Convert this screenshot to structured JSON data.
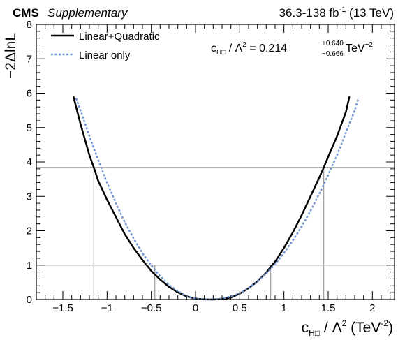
{
  "header": {
    "experiment": "CMS",
    "label": "Supplementary",
    "lumi": "36.3-138 fb",
    "lumi_sup": "-1",
    "lumi_tail": " (13 TeV)"
  },
  "result": {
    "lhs": "c",
    "lhs_sub": "H□",
    "mid": " / Λ",
    "mid_sup": "2",
    "value": " = 0.214",
    "err_up": "+0.640",
    "err_down": "−0.666",
    "unit": " TeV",
    "unit_sup": "−2"
  },
  "chart_data": {
    "type": "line",
    "xlabel": {
      "main": "c",
      "sub": "H□",
      "mid": " / Λ",
      "sup": "2",
      "unit": " (TeV",
      "unit_sup": "-2",
      "close": ")"
    },
    "ylabel": "−2ΔlnL",
    "xlim": [
      -1.8,
      2.25
    ],
    "ylim": [
      0,
      8
    ],
    "x_ticks": [
      -1.5,
      -1,
      -0.5,
      0,
      0.5,
      1,
      1.5,
      2
    ],
    "x_tick_labels": [
      "−1.5",
      "−1",
      "−0.5",
      "0",
      "0.5",
      "1",
      "1.5",
      "2"
    ],
    "y_ticks": [
      0,
      1,
      2,
      3,
      4,
      5,
      6,
      7,
      8
    ],
    "y_tick_labels": [
      "0",
      "1",
      "2",
      "3",
      "4",
      "5",
      "6",
      "7",
      "8"
    ],
    "threshold_lines": [
      1,
      3.84
    ],
    "interval_markers_x": [
      -1.15,
      -0.46,
      0.85,
      1.45
    ],
    "legend_placement": "top-left",
    "series": [
      {
        "name": "Linear+Quadratic",
        "color": "#000000",
        "style": "solid",
        "x": [
          -1.38,
          -1.3,
          -1.2,
          -1.15,
          -1.1,
          -1.0,
          -0.9,
          -0.8,
          -0.7,
          -0.6,
          -0.5,
          -0.4,
          -0.3,
          -0.2,
          -0.1,
          0.0,
          0.1,
          0.2,
          0.3,
          0.4,
          0.5,
          0.6,
          0.7,
          0.8,
          0.85,
          0.9,
          1.0,
          1.1,
          1.2,
          1.3,
          1.4,
          1.45,
          1.5,
          1.6,
          1.7,
          1.74
        ],
        "y": [
          5.9,
          5.1,
          4.2,
          3.84,
          3.45,
          2.9,
          2.4,
          1.9,
          1.5,
          1.15,
          0.83,
          0.58,
          0.37,
          0.21,
          0.09,
          0.025,
          0.005,
          0.0,
          0.01,
          0.06,
          0.17,
          0.33,
          0.53,
          0.78,
          0.95,
          1.1,
          1.5,
          1.95,
          2.45,
          3.0,
          3.55,
          3.84,
          4.15,
          4.75,
          5.45,
          5.9
        ]
      },
      {
        "name": "Linear only",
        "color": "#6f95d2",
        "style": "dotted",
        "x": [
          -1.35,
          -1.3,
          -1.2,
          -1.1,
          -1.0,
          -0.9,
          -0.8,
          -0.7,
          -0.6,
          -0.5,
          -0.4,
          -0.3,
          -0.2,
          -0.1,
          0.0,
          0.1,
          0.2,
          0.3,
          0.4,
          0.5,
          0.6,
          0.7,
          0.8,
          0.9,
          1.0,
          1.1,
          1.2,
          1.3,
          1.4,
          1.5,
          1.6,
          1.7,
          1.8,
          1.84
        ],
        "y": [
          5.85,
          5.5,
          4.75,
          4.05,
          3.4,
          2.8,
          2.25,
          1.78,
          1.35,
          0.99,
          0.68,
          0.43,
          0.24,
          0.1,
          0.025,
          0.0,
          0.0,
          0.03,
          0.09,
          0.18,
          0.33,
          0.52,
          0.76,
          1.03,
          1.35,
          1.72,
          2.12,
          2.58,
          3.08,
          3.62,
          4.2,
          4.85,
          5.5,
          5.85
        ]
      }
    ]
  }
}
